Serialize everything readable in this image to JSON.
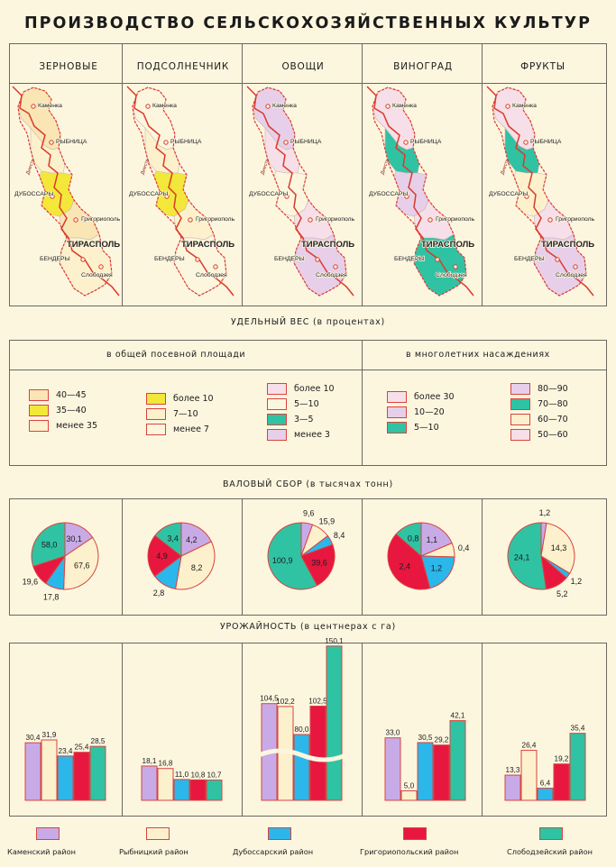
{
  "title": "ПРОИЗВОДСТВО СЕЛЬСКОХОЗЯЙСТВЕННЫХ КУЛЬТУР",
  "colors": {
    "kamen": "#c8abe6",
    "rybn": "#fcf1cc",
    "dub": "#2bb7ea",
    "grig": "#e8173f",
    "slob": "#2fc3a4",
    "yellow_dark": "#f3e83a",
    "peach": "#f9e6b4",
    "pink": "#f6dfe8",
    "border": "#d9433f"
  },
  "crops": [
    "ЗЕРНОВЫЕ",
    "ПОДСОЛНЕЧНИК",
    "ОВОЩИ",
    "ВИНОГРАД",
    "ФРУКТЫ"
  ],
  "map_labels": {
    "kamenka": "Каменка",
    "rybnitsa": "РЫБНИЦА",
    "dubossary": "ДУБОССАРЫ",
    "grigoriopol": "Григориополь",
    "tiraspol": "ТИРАСПОЛЬ",
    "bendery": "БЕНДЕРЫ",
    "slobodzeya": "Слободзея",
    "dniester": "Днестр"
  },
  "sections": {
    "share": "УДЕЛЬНЫЙ ВЕС (в процентах)",
    "harvest": "ВАЛОВЫЙ СБОР (в тысячах тонн)",
    "yield": "УРОЖАЙНОСТЬ (в центнерах с га)"
  },
  "legend_headers": {
    "sown": "в общей посевной площади",
    "perennial": "в многолетних насаждениях"
  },
  "legends": [
    {
      "items": [
        {
          "label": "40—45",
          "color": "#f9e6b4"
        },
        {
          "label": "35—40",
          "color": "#f3e83a"
        },
        {
          "label": "менее 35",
          "color": "#fcf1cc"
        }
      ]
    },
    {
      "items": [
        {
          "label": "более 10",
          "color": "#f3e83a"
        },
        {
          "label": "7—10",
          "color": "#fcf1cc"
        },
        {
          "label": "менее 7",
          "color": "#fdf6df"
        }
      ]
    },
    {
      "items": [
        {
          "label": "более 10",
          "color": "#f6dfe8"
        },
        {
          "label": "5—10",
          "color": "#fdf6df"
        },
        {
          "label": "3—5",
          "color": "#2fc3a4"
        },
        {
          "label": "менее 3",
          "color": "#e7cfea"
        }
      ]
    },
    {
      "items": [
        {
          "label": "более 30",
          "color": "#f6dfe8"
        },
        {
          "label": "10—20",
          "color": "#e7cfea"
        },
        {
          "label": "5—10",
          "color": "#2fc3a4"
        }
      ]
    },
    {
      "items": [
        {
          "label": "80—90",
          "color": "#e7cfea"
        },
        {
          "label": "70—80",
          "color": "#2fc3a4"
        },
        {
          "label": "60—70",
          "color": "#fcf1cc"
        },
        {
          "label": "50—60",
          "color": "#f6dfe8"
        }
      ]
    }
  ],
  "districts": [
    "Каменский район",
    "Рыбницкий район",
    "Дубоссарский район",
    "Григориопольский район",
    "Слободзейский район"
  ],
  "chart_data": [
    {
      "type": "pie",
      "title": "ВАЛОВЫЙ СБОР — ЗЕРНОВЫЕ",
      "categories": [
        "Каменский район",
        "Рыбницкий район",
        "Дубоссарский район",
        "Григориопольский район",
        "Слободзейский район"
      ],
      "values": [
        30.1,
        67.6,
        17.8,
        19.6,
        58.0
      ],
      "labels": [
        "30,1",
        "67,6",
        "17,8",
        "19,6",
        "58,0"
      ]
    },
    {
      "type": "pie",
      "title": "ВАЛОВЫЙ СБОР — ПОДСОЛНЕЧНИК",
      "categories": [
        "Каменский район",
        "Рыбницкий район",
        "Дубоссарский район",
        "Григориопольский район",
        "Слободзейский район"
      ],
      "values": [
        4.2,
        8.2,
        2.8,
        4.9,
        3.4
      ],
      "labels": [
        "4,2",
        "8,2",
        "2,8",
        "4,9",
        "3,4"
      ]
    },
    {
      "type": "pie",
      "title": "ВАЛОВЫЙ СБОР — ОВОЩИ",
      "categories": [
        "Каменский район",
        "Рыбницкий район",
        "Дубоссарский район",
        "Григориопольский район",
        "Слободзейский район"
      ],
      "values": [
        9.6,
        15.9,
        8.4,
        39.6,
        100.9
      ],
      "labels": [
        "9,6",
        "15,9",
        "8,4",
        "39,6",
        "100,9"
      ]
    },
    {
      "type": "pie",
      "title": "ВАЛОВЫЙ СБОР — ВИНОГРАД",
      "categories": [
        "Каменский район",
        "Рыбницкий район",
        "Дубоссарский район",
        "Григориопольский район",
        "Слободзейский район"
      ],
      "values": [
        1.1,
        0.4,
        1.2,
        2.4,
        0.8
      ],
      "labels": [
        "1,1",
        "0,4",
        "1,2",
        "2,4",
        "0,8"
      ]
    },
    {
      "type": "pie",
      "title": "ВАЛОВЫЙ СБОР — ФРУКТЫ",
      "categories": [
        "Каменский район",
        "Рыбницкий район",
        "Дубоссарский район",
        "Григориопольский район",
        "Слободзейский район"
      ],
      "values": [
        1.2,
        14.3,
        1.2,
        5.2,
        24.1
      ],
      "labels": [
        "1,2",
        "14,3",
        "1,2",
        "5,2",
        "24,1"
      ]
    },
    {
      "type": "bar",
      "title": "УРОЖАЙНОСТЬ — ЗЕРНОВЫЕ",
      "ylabel": "ц/га",
      "categories": [
        "Каменский район",
        "Рыбницкий район",
        "Дубоссарский район",
        "Григориопольский район",
        "Слободзейский район"
      ],
      "values": [
        30.4,
        31.9,
        23.4,
        25.4,
        28.5
      ],
      "labels": [
        "30,4",
        "31,9",
        "23,4",
        "25,4",
        "28,5"
      ]
    },
    {
      "type": "bar",
      "title": "УРОЖАЙНОСТЬ — ПОДСОЛНЕЧНИК",
      "ylabel": "ц/га",
      "categories": [
        "Каменский район",
        "Рыбницкий район",
        "Дубоссарский район",
        "Григориопольский район",
        "Слободзейский район"
      ],
      "values": [
        18.1,
        16.8,
        11.0,
        10.8,
        10.7
      ],
      "labels": [
        "18,1",
        "16,8",
        "11,0",
        "10,8",
        "10,7"
      ]
    },
    {
      "type": "bar",
      "title": "УРОЖАЙНОСТЬ — ОВОЩИ",
      "ylabel": "ц/га",
      "broken_axis": true,
      "categories": [
        "Каменский район",
        "Рыбницкий район",
        "Дубоссарский район",
        "Григориопольский район",
        "Слободзейский район"
      ],
      "values": [
        104.5,
        102.2,
        80.0,
        102.5,
        150.1
      ],
      "labels": [
        "104,5",
        "102,2",
        "80,0",
        "102,5",
        "150,1"
      ]
    },
    {
      "type": "bar",
      "title": "УРОЖАЙНОСТЬ — ВИНОГРАД",
      "ylabel": "ц/га",
      "categories": [
        "Каменский район",
        "Рыбницкий район",
        "Дубоссарский район",
        "Григориопольский район",
        "Слободзейский район"
      ],
      "values": [
        33.0,
        5.0,
        30.5,
        29.2,
        42.1
      ],
      "labels": [
        "33,0",
        "5,0",
        "30,5",
        "29,2",
        "42,1"
      ]
    },
    {
      "type": "bar",
      "title": "УРОЖАЙНОСТЬ — ФРУКТЫ",
      "ylabel": "ц/га",
      "categories": [
        "Каменский район",
        "Рыбницкий район",
        "Дубоссарский район",
        "Григориопольский район",
        "Слободзейский район"
      ],
      "values": [
        13.3,
        26.4,
        6.4,
        19.2,
        35.4
      ],
      "labels": [
        "13,3",
        "26,4",
        "6,4",
        "19,2",
        "35,4"
      ]
    }
  ]
}
